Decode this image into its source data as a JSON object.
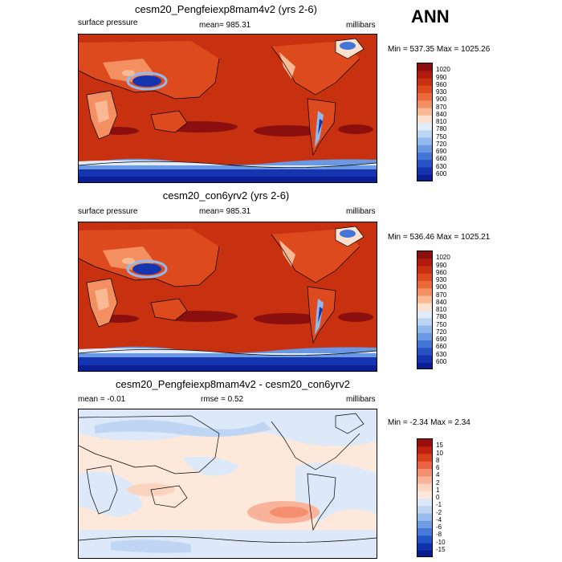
{
  "season": "ANN",
  "panels": [
    {
      "title": "cesm20_Pengfeiexp8mam4v2 (yrs 2-6)",
      "left_label": "surface pressure",
      "center_label": "mean= 985.31",
      "right_label": "millibars",
      "minmax": "Min = 537.35 Max = 1025.26",
      "colorbar_labels": [
        "1020",
        "990",
        "960",
        "930",
        "900",
        "870",
        "840",
        "810",
        "780",
        "750",
        "720",
        "690",
        "660",
        "630",
        "600"
      ],
      "colorbar_colors": [
        "#8b0f0f",
        "#b01a0f",
        "#c8310f",
        "#dc4a1d",
        "#ec6a3a",
        "#f48f62",
        "#f9b994",
        "#fce2ce",
        "#e1ecf8",
        "#bcd6f2",
        "#92b9ec",
        "#6b98e2",
        "#4476d8",
        "#2652c6",
        "#1534b0",
        "#0b1e95"
      ]
    },
    {
      "title": "cesm20_con6yrv2 (yrs 2-6)",
      "left_label": "surface pressure",
      "center_label": "mean= 985.31",
      "right_label": "millibars",
      "minmax": "Min = 536.46 Max = 1025.21",
      "colorbar_labels": [
        "1020",
        "990",
        "960",
        "930",
        "900",
        "870",
        "840",
        "810",
        "780",
        "750",
        "720",
        "690",
        "660",
        "630",
        "600"
      ],
      "colorbar_colors": [
        "#8b0f0f",
        "#b01a0f",
        "#c8310f",
        "#dc4a1d",
        "#ec6a3a",
        "#f48f62",
        "#f9b994",
        "#fce2ce",
        "#e1ecf8",
        "#bcd6f2",
        "#92b9ec",
        "#6b98e2",
        "#4476d8",
        "#2652c6",
        "#1534b0",
        "#0b1e95"
      ]
    },
    {
      "title": "cesm20_Pengfeiexp8mam4v2 - cesm20_con6yrv2",
      "left_label": "mean =  -0.01",
      "center_label": "rmse =   0.52",
      "right_label": "millibars",
      "minmax": "Min =  -2.34 Max =   2.34",
      "colorbar_labels": [
        "15",
        "10",
        "8",
        "6",
        "4",
        "2",
        "1",
        "0",
        "-1",
        "-2",
        "-4",
        "-6",
        "-8",
        "-10",
        "-15"
      ],
      "colorbar_colors": [
        "#9a0d0d",
        "#c0200f",
        "#d9401d",
        "#ea6342",
        "#f48f70",
        "#f8b39a",
        "#fbd4c0",
        "#fde9db",
        "#dde9f8",
        "#bed6f3",
        "#98bdec",
        "#6e9ce3",
        "#4479d8",
        "#2255c6",
        "#0f33ad",
        "#061b8f"
      ]
    }
  ]
}
